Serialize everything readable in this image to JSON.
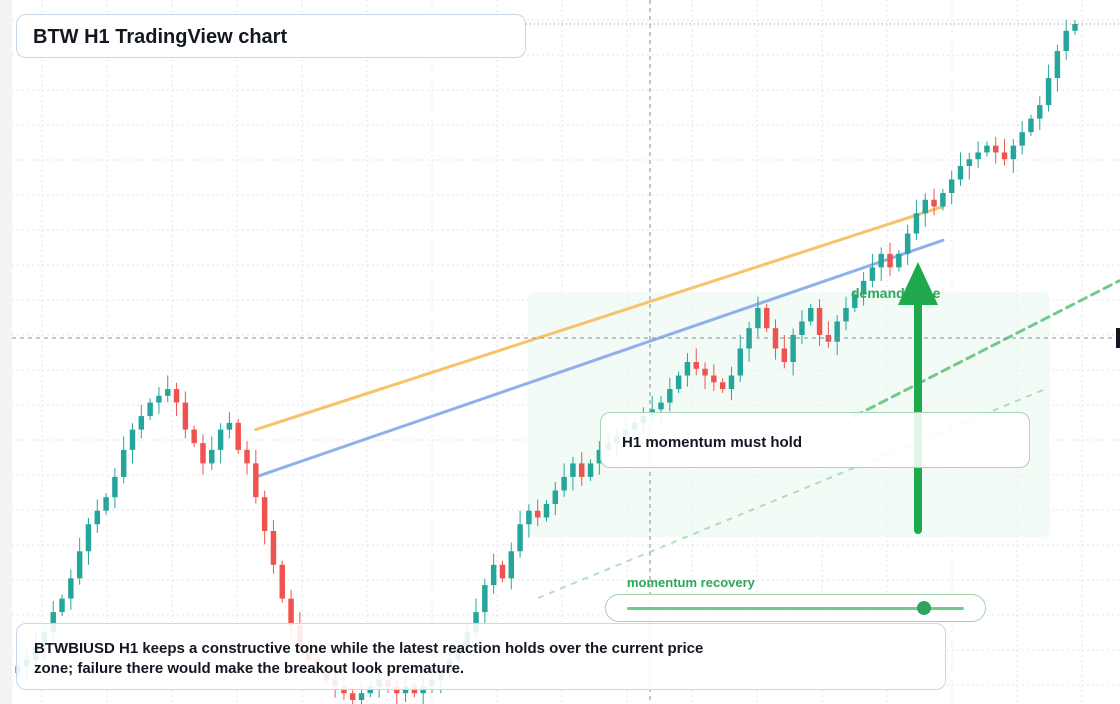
{
  "title": "BTW H1 TradingView chart",
  "callout": "H1 momentum must hold",
  "note": "BTWBIUSD H1 keeps a constructive tone while the latest reaction holds over the current price zone; failure there would make the breakout look premature.",
  "zone_label": "demand zone",
  "slider": {
    "label": "momentum recovery",
    "value": 0.88
  },
  "colors": {
    "up": "#26a69a",
    "down": "#ef5350",
    "ma_orange": "#f6c36b",
    "ma_blue": "#8fb0ea",
    "trend_green": "#72c98c",
    "arrow": "#1ea94c",
    "zone": "#eaf8ee"
  },
  "chart_data": {
    "type": "candlestick",
    "symbol": "BTWBIUSD",
    "timeframe": "H1",
    "ylim": [
      0,
      100
    ],
    "grid": true,
    "series": [
      {
        "name": "candles",
        "close": [
          5,
          6,
          8,
          10,
          13,
          15,
          18,
          22,
          26,
          28,
          30,
          33,
          37,
          40,
          42,
          44,
          45,
          46,
          44,
          40,
          38,
          35,
          37,
          40,
          41,
          37,
          35,
          30,
          25,
          20,
          15,
          11,
          8,
          6,
          5,
          3,
          2,
          1,
          0,
          1,
          2,
          3,
          2,
          1,
          2,
          1,
          2,
          3,
          4,
          6,
          8,
          10,
          13,
          17,
          20,
          18,
          22,
          26,
          28,
          27,
          29,
          31,
          33,
          35,
          33,
          35,
          37,
          38,
          39,
          40,
          41,
          42,
          43,
          44,
          46,
          48,
          50,
          49,
          48,
          47,
          46,
          48,
          52,
          55,
          58,
          55,
          52,
          50,
          54,
          56,
          58,
          54,
          53,
          56,
          58,
          60,
          62,
          64,
          66,
          64,
          66,
          69,
          72,
          74,
          73,
          75,
          77,
          79,
          80,
          81,
          82,
          81,
          80,
          82,
          84,
          86,
          88,
          92,
          96,
          99,
          100
        ]
      },
      {
        "name": "ma_orange",
        "from": [
          27,
          40
        ],
        "to": [
          105,
          73
        ]
      },
      {
        "name": "ma_blue",
        "from": [
          27,
          33
        ],
        "to": [
          105,
          68
        ]
      },
      {
        "name": "trend_dashed",
        "from": [
          95,
          42
        ],
        "to": [
          125,
          62
        ]
      }
    ],
    "annotations": [
      "demand zone",
      "H1 momentum must hold",
      "momentum recovery"
    ]
  }
}
